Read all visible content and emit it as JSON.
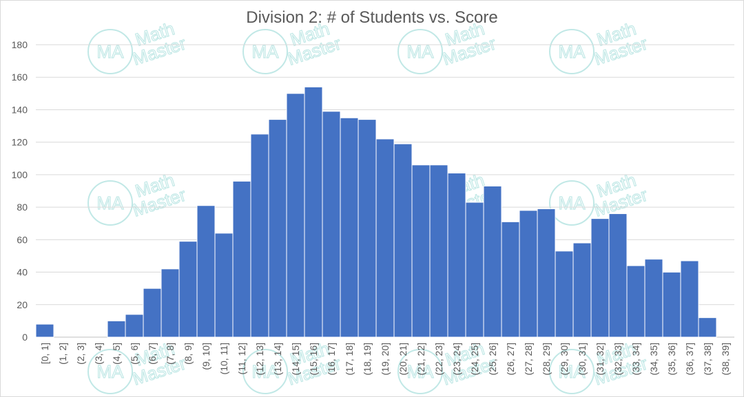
{
  "chart_data": {
    "type": "bar",
    "title": "Division 2: # of Students vs. Score",
    "xlabel": "",
    "ylabel": "",
    "ylim": [
      0,
      180
    ],
    "yticks": [
      "0",
      "20",
      "40",
      "60",
      "80",
      "100",
      "120",
      "140",
      "160",
      "180"
    ],
    "grid": true,
    "legend": "none",
    "bar_color": "#4472C4",
    "categories": [
      "[0, 1]",
      "(1, 2]",
      "(2, 3]",
      "(3, 4]",
      "(4, 5]",
      "(5, 6]",
      "(6, 7]",
      "(7, 8]",
      "(8, 9]",
      "(9, 10]",
      "(10, 11]",
      "(11, 12]",
      "(12, 13]",
      "(13, 14]",
      "(14, 15]",
      "(15, 16]",
      "(16, 17]",
      "(17, 18]",
      "(18, 19]",
      "(19, 20]",
      "(20, 21]",
      "(21, 22]",
      "(22, 23]",
      "(23, 24]",
      "(24, 25]",
      "(25, 26]",
      "(26, 27]",
      "(27, 28]",
      "(28, 29]",
      "(29, 30]",
      "(30, 31]",
      "(31, 32]",
      "(32, 33]",
      "(33, 34]",
      "(34, 35]",
      "(35, 36]",
      "(36, 37]",
      "(37, 38]",
      "(38, 39]"
    ],
    "values": [
      8,
      0,
      0,
      0,
      10,
      14,
      30,
      42,
      59,
      81,
      64,
      96,
      125,
      134,
      150,
      154,
      139,
      135,
      134,
      122,
      119,
      106,
      106,
      101,
      83,
      93,
      71,
      78,
      79,
      53,
      58,
      73,
      76,
      44,
      48,
      40,
      47,
      12,
      0
    ]
  },
  "watermark": {
    "line1": "Math",
    "line2": "Master",
    "monogram": "MA",
    "color": "#8fd6d3",
    "icon": "math-master-logo-icon"
  }
}
